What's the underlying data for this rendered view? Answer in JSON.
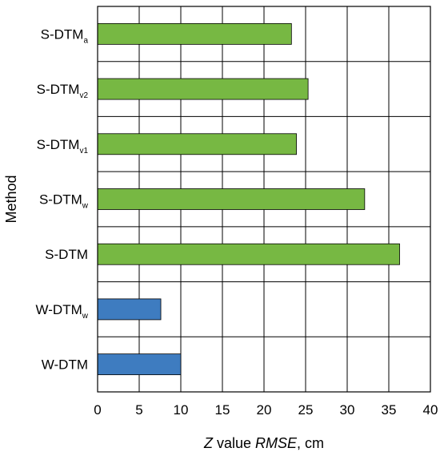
{
  "chart_data": {
    "type": "bar",
    "orientation": "horizontal",
    "categories": [
      {
        "base": "S-DTM",
        "sub": "a"
      },
      {
        "base": "S-DTM",
        "sub": "v2"
      },
      {
        "base": "S-DTM",
        "sub": "v1"
      },
      {
        "base": "S-DTM",
        "sub": "w"
      },
      {
        "base": "S-DTM",
        "sub": ""
      },
      {
        "base": "W-DTM",
        "sub": "w"
      },
      {
        "base": "W-DTM",
        "sub": ""
      }
    ],
    "values": [
      23.3,
      25.3,
      23.9,
      32.1,
      36.3,
      7.6,
      10.0
    ],
    "bar_colors": [
      "#77b843",
      "#77b843",
      "#77b843",
      "#77b843",
      "#77b843",
      "#3e7cc0",
      "#3e7cc0"
    ],
    "xlabel_italic_part": "Z",
    "xlabel_mid": " value ",
    "xlabel_italic_part2": "RMSE",
    "xlabel_tail": ", cm",
    "ylabel": "Method",
    "xlim": [
      0,
      40
    ],
    "xticks": [
      0,
      5,
      10,
      15,
      20,
      25,
      30,
      35,
      40
    ],
    "grid": true
  }
}
